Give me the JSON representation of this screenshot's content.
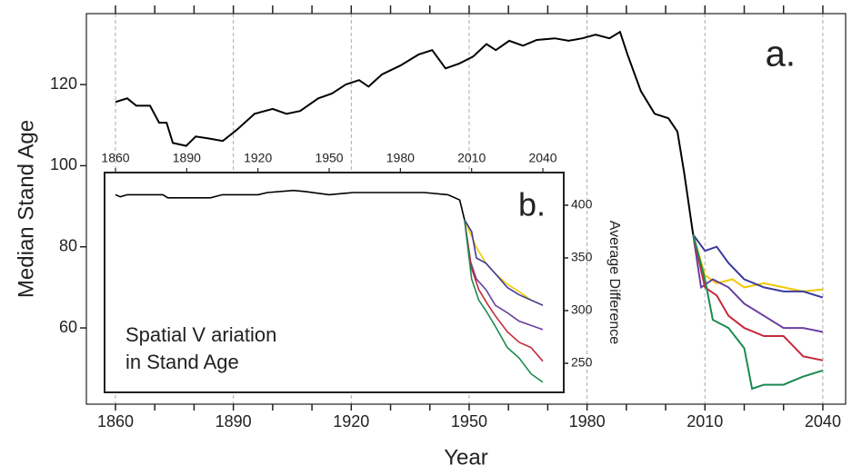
{
  "chart_data": [
    {
      "type": "line",
      "panel_label": "a.",
      "xlabel": "Year",
      "ylabel": "Median Stand Age",
      "xlim": [
        1852.6,
        2045.8
      ],
      "ylim": [
        41.2,
        137.5
      ],
      "xticks": [
        1860,
        1890,
        1920,
        1950,
        1980,
        2010,
        2040
      ],
      "xticks_minor": [
        1860,
        1870,
        1880,
        1890,
        1900,
        1910,
        1920,
        1930,
        1940,
        1950,
        1960,
        1970,
        1980,
        1990,
        2000,
        2010,
        2020,
        2030,
        2040
      ],
      "yticks": [
        60,
        80,
        100,
        120
      ],
      "grid": "x-dashed",
      "yaxis_side": "left",
      "xaxis_side": "bottom",
      "mirror_ticks": true,
      "series": [
        {
          "color": "#000000",
          "x": [
            1860,
            1863,
            1865.3,
            1868.8,
            1871.1,
            1873,
            1874.6,
            1878,
            1880.4,
            1883.8,
            1887.3,
            1890.8,
            1895.4,
            1900,
            1903.5,
            1907,
            1911.6,
            1915.1,
            1918.6,
            1922,
            1924.4,
            1927.8,
            1932.5,
            1937.1,
            1940.6,
            1944,
            1947.5,
            1951,
            1954.4,
            1956.8,
            1960.2,
            1963.7,
            1967.2,
            1971.8,
            1975.3,
            1978.8,
            1982.2,
            1985.7,
            1988.4,
            1990.3,
            1993.7,
            1997.2,
            2000.7,
            2003,
            2004.7,
            2007
          ],
          "values": [
            115.7,
            116.6,
            114.8,
            114.8,
            110.6,
            110.6,
            105.6,
            104.9,
            107.2,
            106.7,
            106.1,
            108.8,
            112.8,
            114,
            112.8,
            113.5,
            116.6,
            117.8,
            120,
            121.1,
            119.5,
            122.5,
            124.7,
            127.4,
            128.5,
            124,
            125.2,
            126.9,
            130,
            128.5,
            130.8,
            129.6,
            131,
            131.4,
            130.8,
            131.4,
            132.3,
            131.4,
            133,
            127.4,
            118.4,
            112.8,
            111.7,
            108.4,
            98.3,
            83
          ]
        },
        {
          "color": "#f2c800",
          "x": [
            2007,
            2010,
            2013,
            2017,
            2020,
            2025,
            2030,
            2035,
            2040
          ],
          "values": [
            83,
            73,
            71,
            72,
            70,
            71,
            70,
            69,
            69.5
          ]
        },
        {
          "color": "#3b3b9c",
          "x": [
            2007,
            2010,
            2013,
            2016,
            2020,
            2025,
            2030,
            2035,
            2040
          ],
          "values": [
            83,
            79,
            80,
            76,
            72,
            70,
            69,
            69,
            67.5
          ]
        },
        {
          "color": "#6b3fa0",
          "x": [
            2007,
            2009,
            2012,
            2016,
            2020,
            2025,
            2030,
            2035,
            2040
          ],
          "values": [
            83,
            70,
            72,
            70,
            66,
            63,
            60,
            60,
            59
          ]
        },
        {
          "color": "#c42a3c",
          "x": [
            2007,
            2010,
            2013,
            2016,
            2020,
            2025,
            2030,
            2035,
            2040
          ],
          "values": [
            83,
            70,
            68,
            63,
            60,
            58,
            58,
            53,
            52
          ]
        },
        {
          "color": "#1b8a52",
          "x": [
            2007,
            2010,
            2012,
            2016,
            2020,
            2022,
            2025,
            2030,
            2035,
            2040
          ],
          "values": [
            83,
            72,
            62,
            60,
            55,
            45,
            46,
            46,
            48,
            49.5
          ]
        }
      ]
    },
    {
      "type": "line",
      "panel_label": "b.",
      "ylabel": "Average Difference",
      "annotation": [
        "Spatial V ariation",
        "in Stand  Age"
      ],
      "xlim": [
        1855.4,
        2048.8
      ],
      "ylim": [
        222.4,
        431
      ],
      "xticks": [
        1860,
        1890,
        1920,
        1950,
        1980,
        2010,
        2040
      ],
      "yticks": [
        250,
        300,
        350,
        400
      ],
      "yaxis_side": "right",
      "xaxis_side": "top",
      "series": [
        {
          "color": "#000000",
          "x": [
            1860,
            1862,
            1865,
            1880,
            1882,
            1900,
            1905,
            1920,
            1924,
            1935,
            1940,
            1950,
            1960,
            1970,
            1990,
            2000,
            2005,
            2007
          ],
          "values": [
            410,
            408,
            410,
            410,
            407,
            407,
            410,
            410,
            412,
            414,
            413,
            410,
            412,
            412,
            412,
            410,
            405,
            386
          ]
        },
        {
          "color": "#f2c800",
          "x": [
            2007,
            2012,
            2016,
            2020,
            2025,
            2030,
            2035,
            2040
          ],
          "values": [
            386,
            360,
            345,
            335,
            325,
            318,
            310,
            305
          ]
        },
        {
          "color": "#3b3b9c",
          "x": [
            2007,
            2010,
            2012,
            2016,
            2020,
            2025,
            2030,
            2040
          ],
          "values": [
            386,
            375,
            350,
            345,
            335,
            322,
            315,
            305
          ]
        },
        {
          "color": "#6b3fa0",
          "x": [
            2007,
            2009,
            2012,
            2016,
            2020,
            2025,
            2030,
            2040
          ],
          "values": [
            386,
            350,
            330,
            320,
            305,
            298,
            290,
            282
          ]
        },
        {
          "color": "#c42a3c",
          "x": [
            2007,
            2010,
            2013,
            2017,
            2020,
            2025,
            2030,
            2035,
            2040
          ],
          "values": [
            386,
            340,
            320,
            305,
            295,
            280,
            270,
            265,
            252
          ]
        },
        {
          "color": "#1b8a52",
          "x": [
            2007,
            2010,
            2013,
            2016,
            2020,
            2025,
            2030,
            2035,
            2040
          ],
          "values": [
            386,
            330,
            310,
            300,
            285,
            265,
            255,
            240,
            232
          ]
        }
      ]
    }
  ]
}
